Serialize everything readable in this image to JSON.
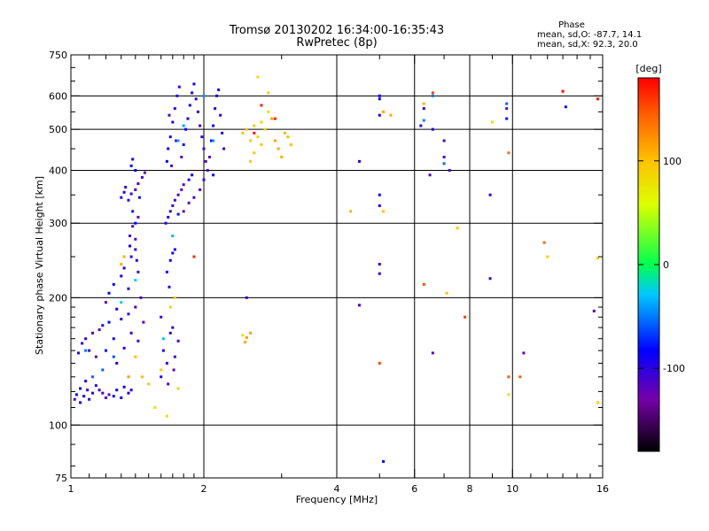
{
  "title_line1": "Tromsø 20130202 16:34:00-16:35:43",
  "title_line2": "RwPretec (8p)",
  "phase_box": {
    "title": "Phase",
    "sd_o": "mean, sd,O: -87.7, 14.1",
    "sd_x": "mean, sd,X:  92.3, 20.0"
  },
  "chart_data": {
    "type": "scatter",
    "xlabel": "Frequency [MHz]",
    "ylabel": "Stationary phase Virtual Height [km]",
    "x_scale": "log",
    "y_scale": "log",
    "xlim": [
      1,
      16
    ],
    "ylim": [
      75,
      750
    ],
    "x_ticks": [
      {
        "value": 1,
        "label": "1"
      },
      {
        "value": 2,
        "label": "2"
      },
      {
        "value": 4,
        "label": "4"
      },
      {
        "value": 6,
        "label": "6"
      },
      {
        "value": 8,
        "label": "8"
      },
      {
        "value": 10,
        "label": "10"
      },
      {
        "value": 16,
        "label": "16"
      }
    ],
    "x_minor_ticks": [
      1.1,
      1.2,
      1.3,
      1.4,
      1.5,
      1.6,
      1.7,
      1.8,
      1.9,
      3,
      5,
      7,
      9,
      11,
      12,
      13,
      14,
      15
    ],
    "y_ticks": [
      {
        "value": 75,
        "label": "75"
      },
      {
        "value": 100,
        "label": "100"
      },
      {
        "value": 200,
        "label": "200"
      },
      {
        "value": 300,
        "label": "300"
      },
      {
        "value": 400,
        "label": "400"
      },
      {
        "value": 500,
        "label": "500"
      },
      {
        "value": 600,
        "label": "600"
      },
      {
        "value": 750,
        "label": "750"
      }
    ],
    "y_minor_ticks": [
      80,
      90,
      110,
      120,
      130,
      140,
      150,
      160,
      170,
      180,
      190,
      250,
      350,
      450,
      550,
      650,
      700
    ],
    "x_grid": [
      2,
      4,
      6,
      8,
      10
    ],
    "y_grid": [
      100,
      200,
      300,
      400,
      500,
      600
    ],
    "grid": true,
    "colorbar": {
      "label": "[deg]",
      "range": [
        -180,
        180
      ],
      "ticks": [
        100,
        0,
        -100
      ],
      "tick_labels": [
        "100",
        "0",
        "-100"
      ]
    },
    "series": [
      {
        "group": "O-mode cluster (blue, about -100 deg)",
        "phase": -100,
        "points": [
          [
            1.02,
            115
          ],
          [
            1.03,
            118
          ],
          [
            1.05,
            113
          ],
          [
            1.05,
            122
          ],
          [
            1.07,
            117
          ],
          [
            1.08,
            127
          ],
          [
            1.09,
            121
          ],
          [
            1.1,
            115
          ],
          [
            1.12,
            119
          ],
          [
            1.14,
            124
          ],
          [
            1.16,
            121
          ],
          [
            1.18,
            119
          ],
          [
            1.2,
            116
          ],
          [
            1.22,
            118
          ],
          [
            1.25,
            117
          ],
          [
            1.27,
            121
          ],
          [
            1.3,
            116
          ],
          [
            1.32,
            123
          ],
          [
            1.35,
            119
          ],
          [
            1.37,
            121
          ],
          [
            1.04,
            148
          ],
          [
            1.06,
            156
          ],
          [
            1.08,
            160
          ],
          [
            1.1,
            150
          ],
          [
            1.12,
            165
          ],
          [
            1.14,
            145
          ],
          [
            1.16,
            168
          ],
          [
            1.18,
            172
          ],
          [
            1.2,
            150
          ],
          [
            1.22,
            175
          ],
          [
            1.25,
            160
          ],
          [
            1.27,
            140
          ],
          [
            1.3,
            178
          ],
          [
            1.32,
            152
          ],
          [
            1.35,
            183
          ],
          [
            1.37,
            165
          ],
          [
            1.4,
            190
          ],
          [
            1.42,
            158
          ],
          [
            1.44,
            200
          ],
          [
            1.46,
            175
          ],
          [
            1.2,
            195
          ],
          [
            1.22,
            205
          ],
          [
            1.25,
            215
          ],
          [
            1.27,
            188
          ],
          [
            1.3,
            225
          ],
          [
            1.32,
            235
          ],
          [
            1.35,
            210
          ],
          [
            1.37,
            250
          ],
          [
            1.4,
            260
          ],
          [
            1.42,
            230
          ],
          [
            1.36,
            280
          ],
          [
            1.38,
            295
          ],
          [
            1.4,
            275
          ],
          [
            1.42,
            310
          ],
          [
            1.38,
            320
          ],
          [
            1.4,
            300
          ],
          [
            1.36,
            265
          ],
          [
            1.41,
            245
          ],
          [
            1.3,
            345
          ],
          [
            1.32,
            355
          ],
          [
            1.33,
            365
          ],
          [
            1.35,
            340
          ],
          [
            1.37,
            352
          ],
          [
            1.4,
            360
          ],
          [
            1.42,
            372
          ],
          [
            1.45,
            385
          ],
          [
            1.47,
            395
          ],
          [
            1.43,
            345
          ],
          [
            1.37,
            410
          ],
          [
            1.4,
            400
          ],
          [
            1.38,
            425
          ],
          [
            1.6,
            130
          ],
          [
            1.62,
            150
          ],
          [
            1.65,
            140
          ],
          [
            1.68,
            165
          ],
          [
            1.7,
            170
          ],
          [
            1.72,
            145
          ],
          [
            1.75,
            158
          ],
          [
            1.6,
            180
          ],
          [
            1.66,
            125
          ],
          [
            1.71,
            135
          ],
          [
            1.65,
            230
          ],
          [
            1.68,
            245
          ],
          [
            1.7,
            255
          ],
          [
            1.72,
            260
          ],
          [
            1.67,
            212
          ],
          [
            1.64,
            300
          ],
          [
            1.66,
            310
          ],
          [
            1.68,
            320
          ],
          [
            1.7,
            330
          ],
          [
            1.72,
            340
          ],
          [
            1.75,
            350
          ],
          [
            1.78,
            360
          ],
          [
            1.8,
            370
          ],
          [
            1.85,
            380
          ],
          [
            1.88,
            390
          ],
          [
            1.65,
            420
          ],
          [
            1.66,
            450
          ],
          [
            1.68,
            480
          ],
          [
            1.7,
            520
          ],
          [
            1.72,
            560
          ],
          [
            1.74,
            600
          ],
          [
            1.76,
            630
          ],
          [
            1.67,
            540
          ],
          [
            1.69,
            410
          ],
          [
            1.73,
            470
          ],
          [
            1.78,
            430
          ],
          [
            1.8,
            460
          ],
          [
            1.82,
            500
          ],
          [
            1.84,
            530
          ],
          [
            1.86,
            570
          ],
          [
            1.88,
            610
          ],
          [
            1.9,
            640
          ],
          [
            1.92,
            590
          ],
          [
            1.94,
            550
          ],
          [
            1.96,
            510
          ],
          [
            1.98,
            480
          ],
          [
            2.0,
            450
          ],
          [
            2.02,
            420
          ],
          [
            2.04,
            400
          ],
          [
            2.06,
            430
          ],
          [
            2.08,
            470
          ],
          [
            2.1,
            510
          ],
          [
            2.12,
            560
          ],
          [
            2.14,
            600
          ],
          [
            2.16,
            620
          ],
          [
            2.18,
            540
          ],
          [
            2.2,
            490
          ],
          [
            2.22,
            450
          ],
          [
            2.0,
            380
          ],
          [
            1.96,
            360
          ],
          [
            1.9,
            345
          ],
          [
            1.85,
            335
          ],
          [
            1.8,
            320
          ],
          [
            1.75,
            315
          ],
          [
            2.1,
            390
          ],
          [
            5.0,
            600
          ],
          [
            5.0,
            590
          ],
          [
            5.0,
            540
          ],
          [
            6.2,
            510
          ],
          [
            6.3,
            560
          ],
          [
            6.6,
            500
          ],
          [
            7.0,
            470
          ],
          [
            7.0,
            430
          ],
          [
            7.2,
            400
          ],
          [
            6.5,
            390
          ],
          [
            9.7,
            560
          ],
          [
            9.7,
            530
          ],
          [
            13.2,
            565
          ],
          [
            5.0,
            350
          ],
          [
            5.0,
            330
          ],
          [
            4.5,
            420
          ],
          [
            8.9,
            350
          ],
          [
            5.0,
            240
          ],
          [
            5.0,
            228
          ],
          [
            8.9,
            222
          ],
          [
            2.5,
            200
          ],
          [
            4.5,
            192
          ],
          [
            15.3,
            186
          ],
          [
            6.6,
            148
          ],
          [
            10.6,
            148
          ],
          [
            5.1,
            82
          ]
        ]
      },
      {
        "group": "Cyan/green points (about -50 to 0 deg)",
        "phase": -45,
        "points": [
          [
            1.08,
            150
          ],
          [
            1.12,
            130
          ],
          [
            1.18,
            135
          ],
          [
            1.25,
            145
          ],
          [
            1.3,
            195
          ],
          [
            1.4,
            220
          ],
          [
            1.62,
            160
          ],
          [
            1.7,
            280
          ],
          [
            1.75,
            470
          ],
          [
            1.8,
            510
          ],
          [
            2.0,
            600
          ],
          [
            2.1,
            470
          ],
          [
            6.3,
            525
          ],
          [
            6.6,
            600
          ],
          [
            7.0,
            415
          ],
          [
            9.7,
            575
          ]
        ]
      },
      {
        "group": "Yellow cluster (about 100 deg)",
        "phase": 100,
        "points": [
          [
            2.45,
            490
          ],
          [
            2.5,
            500
          ],
          [
            2.55,
            470
          ],
          [
            2.6,
            510
          ],
          [
            2.65,
            480
          ],
          [
            2.7,
            520
          ],
          [
            2.75,
            500
          ],
          [
            2.8,
            550
          ],
          [
            2.85,
            530
          ],
          [
            2.9,
            470
          ],
          [
            2.95,
            450
          ],
          [
            3.0,
            430
          ],
          [
            3.05,
            490
          ],
          [
            3.1,
            480
          ],
          [
            3.15,
            460
          ],
          [
            2.6,
            440
          ],
          [
            2.7,
            460
          ],
          [
            2.55,
            420
          ],
          [
            2.8,
            610
          ],
          [
            2.65,
            665
          ],
          [
            2.45,
            163
          ],
          [
            2.5,
            161
          ],
          [
            2.55,
            165
          ],
          [
            2.48,
            157
          ],
          [
            1.3,
            240
          ],
          [
            1.32,
            250
          ],
          [
            1.4,
            145
          ],
          [
            1.45,
            130
          ],
          [
            1.5,
            125
          ],
          [
            1.6,
            135
          ],
          [
            1.68,
            190
          ],
          [
            1.72,
            200
          ],
          [
            1.75,
            122
          ],
          [
            1.65,
            105
          ],
          [
            1.55,
            110
          ],
          [
            1.35,
            130
          ],
          [
            5.1,
            550
          ],
          [
            5.3,
            540
          ],
          [
            6.3,
            575
          ],
          [
            4.3,
            320
          ],
          [
            5.1,
            320
          ],
          [
            7.1,
            205
          ],
          [
            7.5,
            292
          ],
          [
            12.0,
            250
          ],
          [
            15.6,
            248
          ],
          [
            15.6,
            113
          ],
          [
            9.8,
            118
          ],
          [
            9.0,
            520
          ]
        ]
      },
      {
        "group": "Red/orange points (about 160 deg)",
        "phase": 160,
        "points": [
          [
            2.6,
            490
          ],
          [
            2.7,
            570
          ],
          [
            2.9,
            530
          ],
          [
            1.9,
            250
          ],
          [
            6.6,
            610
          ],
          [
            7.8,
            180
          ],
          [
            5.0,
            140
          ],
          [
            6.3,
            215
          ],
          [
            9.8,
            130
          ],
          [
            10.4,
            130
          ],
          [
            11.8,
            270
          ],
          [
            9.8,
            440
          ],
          [
            13.0,
            615
          ],
          [
            15.6,
            590
          ]
        ]
      }
    ]
  }
}
